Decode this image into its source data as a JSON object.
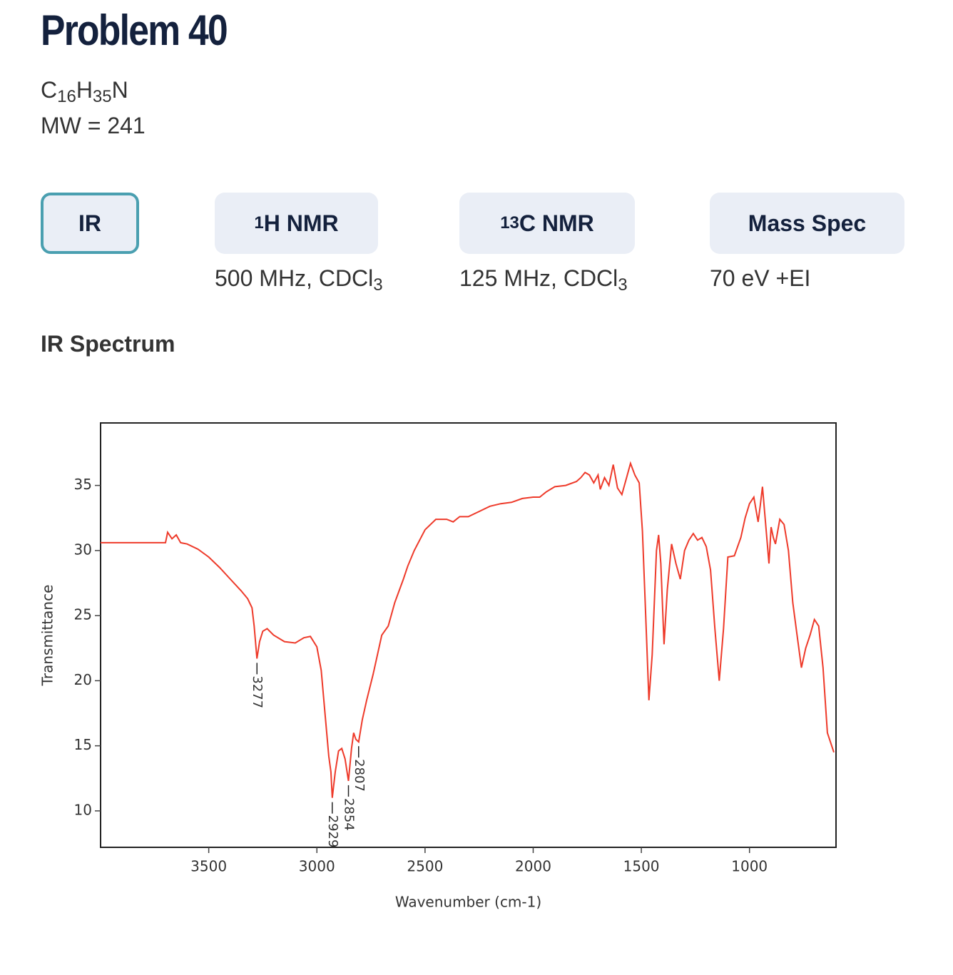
{
  "title": "Problem 40",
  "formula": [
    {
      "text": "C"
    },
    {
      "text": "16",
      "sub": true
    },
    {
      "text": "H"
    },
    {
      "text": "35",
      "sub": true
    },
    {
      "text": "N"
    }
  ],
  "mw": "MW = 241",
  "tabs": [
    {
      "label": [
        {
          "text": "IR"
        }
      ],
      "selected": true
    },
    {
      "label": [
        {
          "text": "1",
          "sup": true
        },
        {
          "text": "H NMR"
        }
      ],
      "note": [
        {
          "text": "500 MHz, CDCl"
        },
        {
          "text": "3",
          "sub": true
        }
      ]
    },
    {
      "label": [
        {
          "text": "13",
          "sup": true
        },
        {
          "text": "C NMR"
        }
      ],
      "note": [
        {
          "text": "125 MHz, CDCl"
        },
        {
          "text": "3",
          "sub": true
        }
      ]
    },
    {
      "label": [
        {
          "text": "Mass Spec"
        }
      ],
      "note": [
        {
          "text": "70 eV +EI"
        }
      ]
    }
  ],
  "section": "IR Spectrum",
  "chart_data": {
    "type": "line",
    "xlabel": "Wavenumber (cm-1)",
    "ylabel": "Transmittance",
    "color": "#ee3a2a",
    "xlim": [
      4000,
      600
    ],
    "ylim": [
      7.2,
      39.8
    ],
    "xticks": [
      3500,
      3000,
      2500,
      2000,
      1500,
      1000
    ],
    "yticks": [
      10,
      15,
      20,
      25,
      30,
      35
    ],
    "x": [
      4000,
      3700,
      3690,
      3670,
      3650,
      3630,
      3600,
      3550,
      3500,
      3450,
      3400,
      3350,
      3320,
      3300,
      3290,
      3277,
      3265,
      3250,
      3230,
      3200,
      3150,
      3100,
      3060,
      3030,
      3000,
      2980,
      2960,
      2945,
      2935,
      2929,
      2915,
      2900,
      2885,
      2870,
      2854,
      2840,
      2830,
      2820,
      2807,
      2790,
      2770,
      2740,
      2700,
      2670,
      2640,
      2600,
      2580,
      2550,
      2500,
      2450,
      2400,
      2370,
      2340,
      2300,
      2250,
      2200,
      2150,
      2100,
      2050,
      2000,
      1970,
      1940,
      1900,
      1850,
      1800,
      1780,
      1760,
      1740,
      1720,
      1700,
      1690,
      1670,
      1650,
      1630,
      1610,
      1590,
      1570,
      1550,
      1530,
      1510,
      1495,
      1480,
      1465,
      1450,
      1430,
      1420,
      1410,
      1395,
      1380,
      1360,
      1340,
      1320,
      1300,
      1280,
      1260,
      1240,
      1220,
      1200,
      1180,
      1160,
      1140,
      1120,
      1100,
      1070,
      1040,
      1020,
      1000,
      980,
      960,
      950,
      940,
      925,
      910,
      900,
      890,
      880,
      860,
      840,
      820,
      800,
      780,
      760,
      740,
      720,
      700,
      680,
      660,
      640,
      610
    ],
    "values": [
      30.6,
      30.6,
      31.4,
      30.9,
      31.2,
      30.6,
      30.5,
      30.1,
      29.5,
      28.7,
      27.8,
      26.9,
      26.3,
      25.6,
      24.2,
      21.7,
      23.0,
      23.8,
      24.0,
      23.5,
      23.0,
      22.9,
      23.3,
      23.4,
      22.6,
      20.8,
      17.0,
      14.2,
      13.0,
      11.0,
      13.0,
      14.6,
      14.8,
      14.0,
      12.3,
      14.8,
      16.0,
      15.5,
      15.3,
      17.0,
      18.5,
      20.5,
      23.5,
      24.2,
      26.0,
      27.8,
      28.8,
      30.0,
      31.6,
      32.4,
      32.4,
      32.2,
      32.6,
      32.6,
      33.0,
      33.4,
      33.6,
      33.7,
      34.0,
      34.1,
      34.1,
      34.5,
      34.9,
      35.0,
      35.3,
      35.6,
      36.0,
      35.8,
      35.2,
      35.8,
      34.7,
      35.6,
      35.0,
      36.6,
      34.8,
      34.3,
      35.5,
      36.7,
      35.8,
      35.2,
      31.5,
      25.0,
      18.5,
      22.0,
      30.0,
      31.2,
      29.0,
      22.8,
      27.0,
      30.5,
      29.0,
      27.8,
      30.0,
      30.8,
      31.3,
      30.8,
      31.0,
      30.3,
      28.5,
      24.0,
      20.0,
      24.0,
      29.5,
      29.6,
      31.0,
      32.5,
      33.6,
      34.1,
      32.2,
      33.5,
      34.9,
      32.0,
      29.0,
      31.8,
      31.0,
      30.5,
      32.4,
      32.0,
      30.0,
      26.0,
      23.5,
      21.0,
      22.5,
      23.5,
      24.7,
      24.2,
      21.0,
      16.0,
      14.5
    ],
    "peaks": [
      {
        "x": 3277,
        "y": 21.7
      },
      {
        "x": 2929,
        "y": 11.0
      },
      {
        "x": 2854,
        "y": 12.3
      },
      {
        "x": 2807,
        "y": 15.3
      }
    ]
  }
}
